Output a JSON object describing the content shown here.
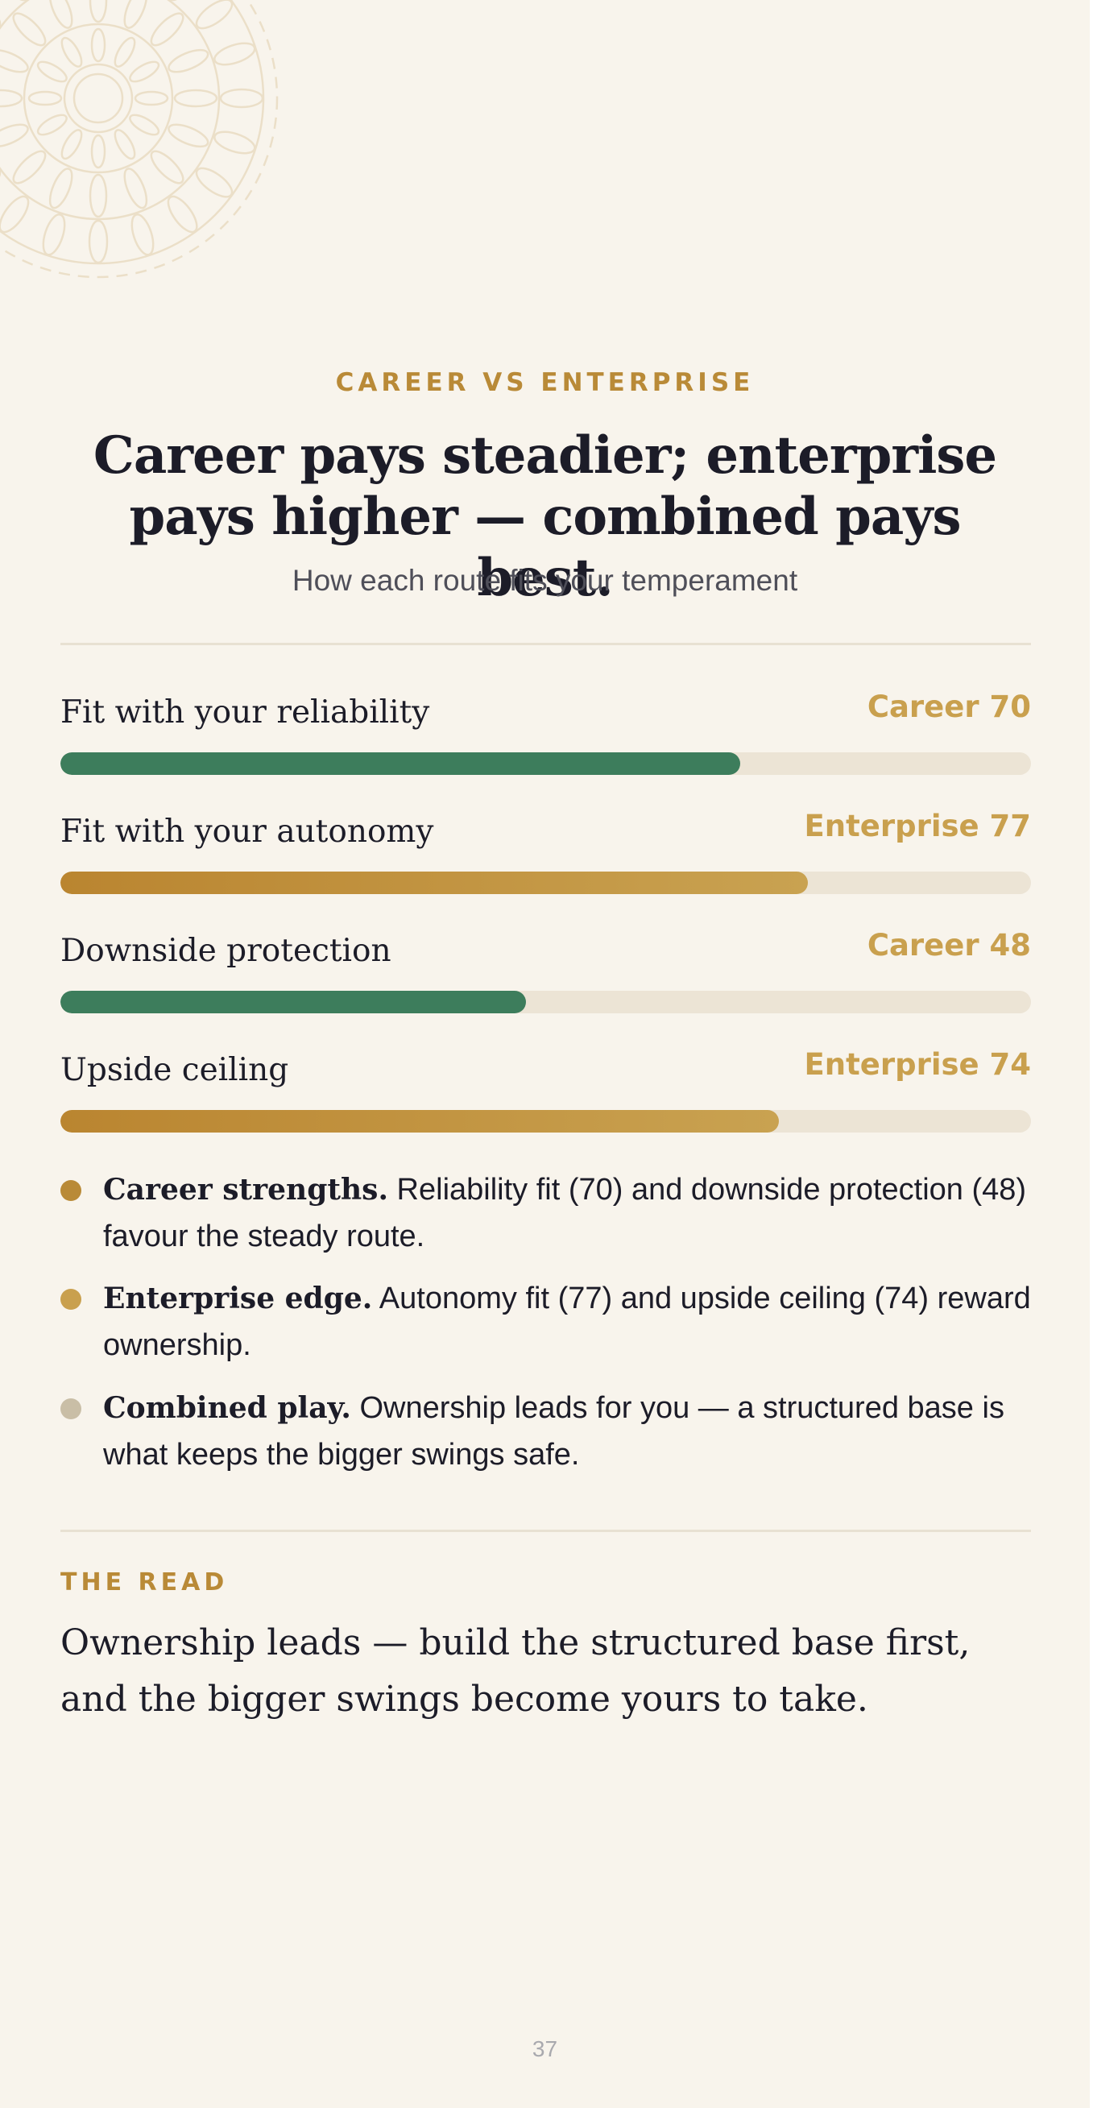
{
  "eyebrow": "CAREER VS ENTERPRISE",
  "headline": {
    "line1": "Career pays steadier; enterprise",
    "line2": "pays higher — combined pays best."
  },
  "subtitle": "How each route fits your temperament",
  "metrics": [
    {
      "label": "Fit with your reliability",
      "value_text": "Career 70",
      "value": 70,
      "route": "career",
      "bar_fraction": 0.7
    },
    {
      "label": "Fit with your autonomy",
      "value_text": "Enterprise 77",
      "value": 77,
      "route": "enterprise",
      "bar_fraction": 0.77
    },
    {
      "label": "Downside protection",
      "value_text": "Career 48",
      "value": 48,
      "route": "career",
      "bar_fraction": 0.48
    },
    {
      "label": "Upside ceiling",
      "value_text": "Enterprise 74",
      "value": 74,
      "route": "enterprise",
      "bar_fraction": 0.74
    }
  ],
  "bullets": [
    {
      "lead": "Career strengths.",
      "text": "Reliability fit (70) and downside protection (48) favour the steady route.",
      "dot_color": "#b98a37"
    },
    {
      "lead": "Enterprise edge.",
      "text": "Autonomy fit (77) and upside ceiling (74) reward ownership.",
      "dot_color": "#c9a04e"
    },
    {
      "lead": "Combined play.",
      "text": "Ownership leads for you — a structured base is what keeps the bigger swings safe.",
      "dot_color": "#c9bea6"
    }
  ],
  "read": {
    "label": "THE READ",
    "text": "Ownership leads — build the structured base first, and the bigger swings become yours to take."
  },
  "page_number": "37",
  "colors": {
    "background": "#f8f4ec",
    "accent_gold": "#b98a37",
    "career_green": "#3d7d5c",
    "enterprise_gold": "#c9a04e",
    "track": "#ece4d5"
  }
}
